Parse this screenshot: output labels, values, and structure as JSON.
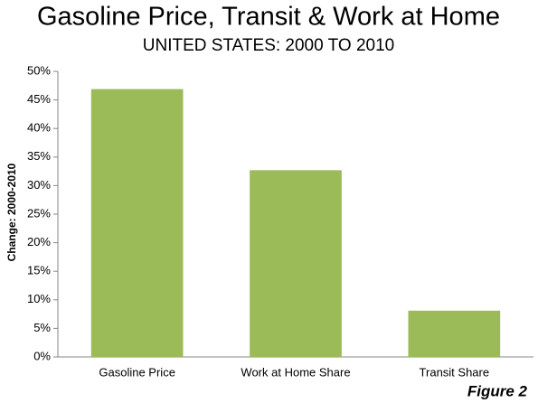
{
  "chart_data": {
    "type": "bar",
    "title": "Gasoline Price, Transit & Work at Home",
    "subtitle": "UNITED STATES: 2000 TO 2010",
    "y_label": "Change: 2000-2010",
    "annotation": "Figure 2",
    "categories": [
      "Gasoline Price",
      "Work at Home Share",
      "Transit Share"
    ],
    "values": [
      46.9,
      32.7,
      8.1
    ],
    "color": "#9bbb59",
    "ylim": [
      0,
      50
    ],
    "yticks": [
      {
        "value": 0,
        "label": "0%"
      },
      {
        "value": 5,
        "label": "5%"
      },
      {
        "value": 10,
        "label": "10%"
      },
      {
        "value": 15,
        "label": "15%"
      },
      {
        "value": 20,
        "label": "20%"
      },
      {
        "value": 25,
        "label": "25%"
      },
      {
        "value": 30,
        "label": "30%"
      },
      {
        "value": 35,
        "label": "35%"
      },
      {
        "value": 40,
        "label": "40%"
      },
      {
        "value": 45,
        "label": "45%"
      },
      {
        "value": 50,
        "label": "50%"
      }
    ],
    "grid": false
  }
}
